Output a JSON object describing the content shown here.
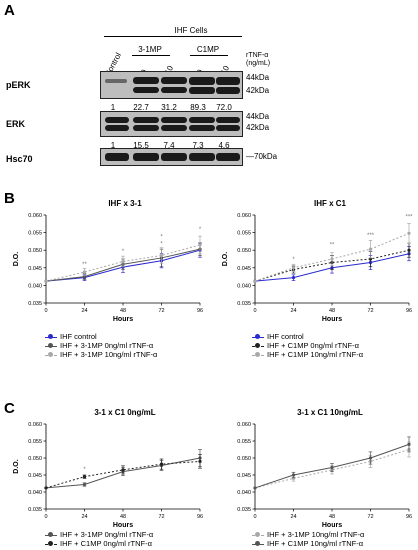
{
  "panel_a": {
    "label": "A",
    "header": "IHF Cells",
    "groups": [
      "3-1MP",
      "C1MP"
    ],
    "lanes": [
      "Control",
      "0",
      "10",
      "0",
      "10"
    ],
    "rtnf_label": [
      "rTNF-α",
      "(ng/mL)"
    ],
    "blots": [
      {
        "name": "pERK",
        "markers": [
          "44kDa",
          "42kDa"
        ],
        "values": [
          "1",
          "22.7",
          "31.2",
          "89.3",
          "72.0"
        ]
      },
      {
        "name": "ERK",
        "markers": [
          "44kDa",
          "42kDa"
        ],
        "values": [
          "1",
          "15.5",
          "7.4",
          "7.3",
          "4.6"
        ]
      },
      {
        "name": "Hsc70",
        "markers": [
          "70kDa"
        ],
        "values": []
      }
    ]
  },
  "panel_b": {
    "label": "B"
  },
  "panel_c": {
    "label": "C"
  },
  "colors": {
    "blue": "#2a2ad0",
    "black": "#222222",
    "dgray": "#555555",
    "lgray": "#a8a8a8"
  },
  "chart_data": [
    {
      "id": "b1",
      "type": "line",
      "title": "IHF x 3-1",
      "xlabel": "Hours",
      "ylabel": "D.O.",
      "x": [
        0,
        24,
        48,
        72,
        96
      ],
      "xlim": [
        0,
        96
      ],
      "ylim": [
        0.035,
        0.06
      ],
      "yticks": [
        "0.035",
        "0.040",
        "0.045",
        "0.050",
        "0.055",
        "0.060"
      ],
      "series": [
        {
          "name": "IHF control",
          "style": "blue",
          "values": [
            0.0412,
            0.0422,
            0.0452,
            0.047,
            0.05
          ],
          "err": [
            0,
            0.0008,
            0.0015,
            0.002,
            0.002
          ]
        },
        {
          "name": "IHF + 3-1MP 0ng/ml rTNF-α",
          "style": "dgray",
          "values": [
            0.0412,
            0.0425,
            0.046,
            0.0478,
            0.0503
          ],
          "err": [
            0,
            0.0008,
            0.0015,
            0.0025,
            0.0018
          ]
        },
        {
          "name": "IHF + 3-1MP 10ng/ml rTNF-α",
          "style": "lgray",
          "values": [
            0.0412,
            0.0438,
            0.0468,
            0.0485,
            0.0515
          ],
          "err": [
            0,
            0.001,
            0.0015,
            0.0022,
            0.0025
          ]
        }
      ],
      "annotations": [
        {
          "x": 24,
          "y": 0.0455,
          "text": "**"
        },
        {
          "x": 48,
          "y": 0.0492,
          "text": "*"
        },
        {
          "x": 72,
          "y": 0.0513,
          "text": "*"
        },
        {
          "x": 72,
          "y": 0.0533,
          "text": "*"
        },
        {
          "x": 96,
          "y": 0.0555,
          "text": "*"
        }
      ]
    },
    {
      "id": "b2",
      "type": "line",
      "title": "IHF x C1",
      "xlabel": "Hours",
      "ylabel": "D.O.",
      "x": [
        0,
        24,
        48,
        72,
        96
      ],
      "xlim": [
        0,
        96
      ],
      "ylim": [
        0.035,
        0.06
      ],
      "yticks": [
        "0.035",
        "0.040",
        "0.045",
        "0.050",
        "0.055",
        "0.060"
      ],
      "series": [
        {
          "name": "IHF control",
          "style": "blue",
          "values": [
            0.0412,
            0.0422,
            0.045,
            0.0465,
            0.049
          ],
          "err": [
            0,
            0.0008,
            0.0015,
            0.002,
            0.002
          ]
        },
        {
          "name": "IHF + C1MP 0ng/ml rTNF-α",
          "style": "black",
          "values": [
            0.0412,
            0.0445,
            0.0465,
            0.0475,
            0.05
          ],
          "err": [
            0,
            0.001,
            0.002,
            0.0022,
            0.002
          ]
        },
        {
          "name": "IHF + C1MP 10ng/ml rTNF-α",
          "style": "lgray",
          "values": [
            0.0412,
            0.045,
            0.0475,
            0.0503,
            0.0548
          ],
          "err": [
            0,
            0.001,
            0.0018,
            0.0025,
            0.0028
          ]
        }
      ],
      "annotations": [
        {
          "x": 24,
          "y": 0.047,
          "text": "*"
        },
        {
          "x": 48,
          "y": 0.051,
          "text": "**"
        },
        {
          "x": 72,
          "y": 0.0538,
          "text": "***"
        },
        {
          "x": 96,
          "y": 0.059,
          "text": "***"
        }
      ]
    },
    {
      "id": "c1",
      "type": "line",
      "title": "3-1 x C1 0ng/mL",
      "xlabel": "Hours",
      "ylabel": "D.O.",
      "x": [
        0,
        24,
        48,
        72,
        96
      ],
      "xlim": [
        0,
        96
      ],
      "ylim": [
        0.035,
        0.06
      ],
      "yticks": [
        "0.035",
        "0.040",
        "0.045",
        "0.050",
        "0.055",
        "0.060"
      ],
      "series": [
        {
          "name": "IHF + 3-1MP 0ng/ml rTNF-α",
          "style": "dgray",
          "values": [
            0.0412,
            0.0422,
            0.046,
            0.0478,
            0.05
          ],
          "err": [
            0,
            0.0005,
            0.0012,
            0.0015,
            0.0025
          ]
        },
        {
          "name": "IHF + C1MP 0ng/ml rTNF-α",
          "style": "black",
          "values": [
            0.0412,
            0.0445,
            0.0465,
            0.0482,
            0.049
          ],
          "err": [
            0,
            0.0005,
            0.0012,
            0.0015,
            0.002
          ]
        }
      ],
      "annotations": [
        {
          "x": 24,
          "y": 0.0462,
          "text": "*"
        }
      ]
    },
    {
      "id": "c2",
      "type": "line",
      "title": "3-1 x C1 10ng/mL",
      "xlabel": "Hours",
      "ylabel": "",
      "x": [
        0,
        24,
        48,
        72,
        96
      ],
      "xlim": [
        0,
        96
      ],
      "ylim": [
        0.035,
        0.06
      ],
      "yticks": [
        "0.035",
        "0.040",
        "0.045",
        "0.050",
        "0.055",
        "0.060"
      ],
      "series": [
        {
          "name": "IHF + 3-1MP 10ng/ml rTNF-α",
          "style": "lgray",
          "values": [
            0.0412,
            0.044,
            0.0465,
            0.049,
            0.0525
          ],
          "err": [
            0,
            0.0008,
            0.0012,
            0.0018,
            0.0022
          ]
        },
        {
          "name": "IHF + C1MP 10ng/ml rTNF-α",
          "style": "dgray",
          "values": [
            0.0412,
            0.045,
            0.0472,
            0.05,
            0.054
          ],
          "err": [
            0,
            0.0008,
            0.0012,
            0.0018,
            0.0022
          ]
        }
      ],
      "annotations": []
    }
  ]
}
